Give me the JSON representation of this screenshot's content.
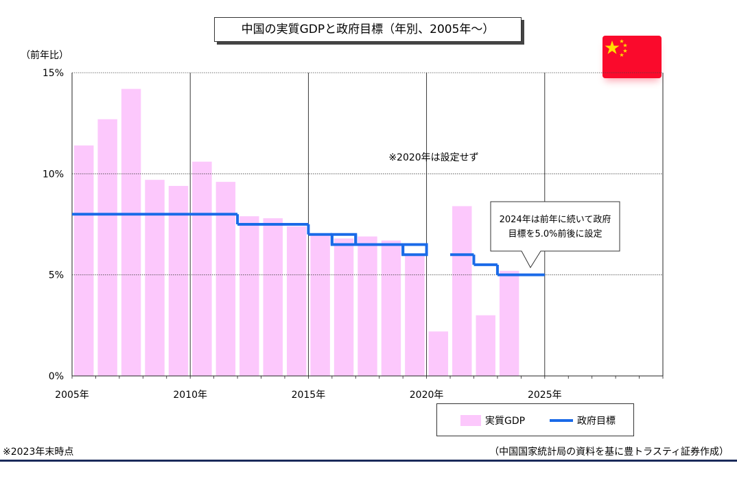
{
  "header": {
    "title": "中国の実質GDPと政府目標（年別、2005年～）"
  },
  "unit_label": "（前年比）",
  "footnote": "※2023年末時点",
  "source": "（中国国家統計局の資料を基に豊トラスティ証券作成）",
  "legend": {
    "gdp": "実質GDP",
    "target": "政府目標"
  },
  "flag": {
    "name": "china-flag-icon",
    "colors": {
      "field": "#fa0a2c",
      "stars": "#ffe000"
    }
  },
  "chart_data": {
    "type": "bar",
    "title": "中国の実質GDPと政府目標（年別、2005年～）",
    "ylabel": "（前年比）",
    "xlabel": "",
    "ylim": [
      0,
      15
    ],
    "xlim": [
      2005,
      2030
    ],
    "y_ticks": [
      "0%",
      "5%",
      "10%",
      "15%"
    ],
    "x_ticks": [
      "2005年",
      "2010年",
      "2015年",
      "2020年",
      "2025年"
    ],
    "grid": true,
    "legend_position": "bottom-right",
    "colors": {
      "gdp_bar": "#fcc8fc",
      "target_line": "#1a6ae8"
    },
    "series": [
      {
        "name": "実質GDP",
        "type": "bar",
        "x": [
          2005,
          2006,
          2007,
          2008,
          2009,
          2010,
          2011,
          2012,
          2013,
          2014,
          2015,
          2016,
          2017,
          2018,
          2019,
          2020,
          2021,
          2022,
          2023
        ],
        "values": [
          11.4,
          12.7,
          14.2,
          9.7,
          9.4,
          10.6,
          9.6,
          7.9,
          7.8,
          7.4,
          7.0,
          6.8,
          6.9,
          6.7,
          6.0,
          2.2,
          8.4,
          3.0,
          5.2
        ]
      },
      {
        "name": "政府目標",
        "type": "step",
        "segments": [
          {
            "from": 2005,
            "to": 2012,
            "value": 8.0
          },
          {
            "from": 2012,
            "to": 2015,
            "value": 7.5
          },
          {
            "from": 2015,
            "to": 2016,
            "value": 7.0
          },
          {
            "from": 2016,
            "to": 2017,
            "value": [
              6.5,
              7.0
            ]
          },
          {
            "from": 2017,
            "to": 2019,
            "value": 6.5
          },
          {
            "from": 2019,
            "to": 2020,
            "value": [
              6.0,
              6.5
            ]
          },
          {
            "from": 2021,
            "to": 2022,
            "value": 6.0
          },
          {
            "from": 2022,
            "to": 2023,
            "value": 5.5
          },
          {
            "from": 2023,
            "to": 2025,
            "value": 5.0
          }
        ]
      }
    ],
    "annotations": {
      "no_target_2020": "※2020年は設定せず",
      "callout_2024": [
        "2024年は前年に続いて政府",
        "目標を5.0%前後に設定"
      ]
    }
  }
}
